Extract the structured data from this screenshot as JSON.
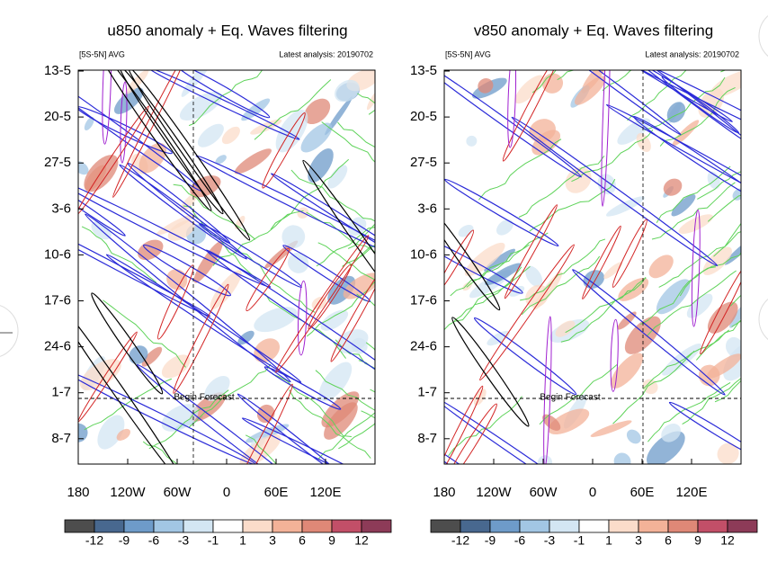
{
  "panels": [
    {
      "title": "u850 anomaly + Eq. Waves filtering",
      "region": "[5S-5N] AVG",
      "analysis": "Latest analysis: 20190702",
      "yticks": [
        "13-5",
        "20-5",
        "27-5",
        "3-6",
        "10-6",
        "17-6",
        "24-6",
        "1-7",
        "8-7"
      ],
      "xticks": [
        "180",
        "120W",
        "60W",
        "0",
        "60E",
        "120E"
      ],
      "forecast_label": "Begin Forecast",
      "colorbar": {
        "colors": [
          "#4d4d4d",
          "#48688f",
          "#6e9bc9",
          "#a2c6e4",
          "#d3e6f3",
          "#ffffff",
          "#fbdcca",
          "#f3b298",
          "#df8877",
          "#c24f68",
          "#8d3b58"
        ],
        "labels": [
          "-12",
          "-9",
          "-6",
          "-3",
          "-1",
          "1",
          "3",
          "6",
          "9",
          "12"
        ]
      }
    },
    {
      "title": "v850 anomaly + Eq. Waves filtering",
      "region": "[5S-5N] AVG",
      "analysis": "Latest analysis: 20190702",
      "yticks": [
        "13-5",
        "20-5",
        "27-5",
        "3-6",
        "10-6",
        "17-6",
        "24-6",
        "1-7",
        "8-7"
      ],
      "xticks": [
        "180",
        "120W",
        "60W",
        "0",
        "60E",
        "120E"
      ],
      "forecast_label": "Begin Forecast",
      "colorbar": {
        "colors": [
          "#4d4d4d",
          "#48688f",
          "#6e9bc9",
          "#a2c6e4",
          "#d3e6f3",
          "#ffffff",
          "#fbdcca",
          "#f3b298",
          "#df8877",
          "#c24f68",
          "#8d3b58"
        ],
        "labels": [
          "-12",
          "-9",
          "-6",
          "-3",
          "-1",
          "1",
          "3",
          "6",
          "9",
          "12"
        ]
      }
    }
  ]
}
